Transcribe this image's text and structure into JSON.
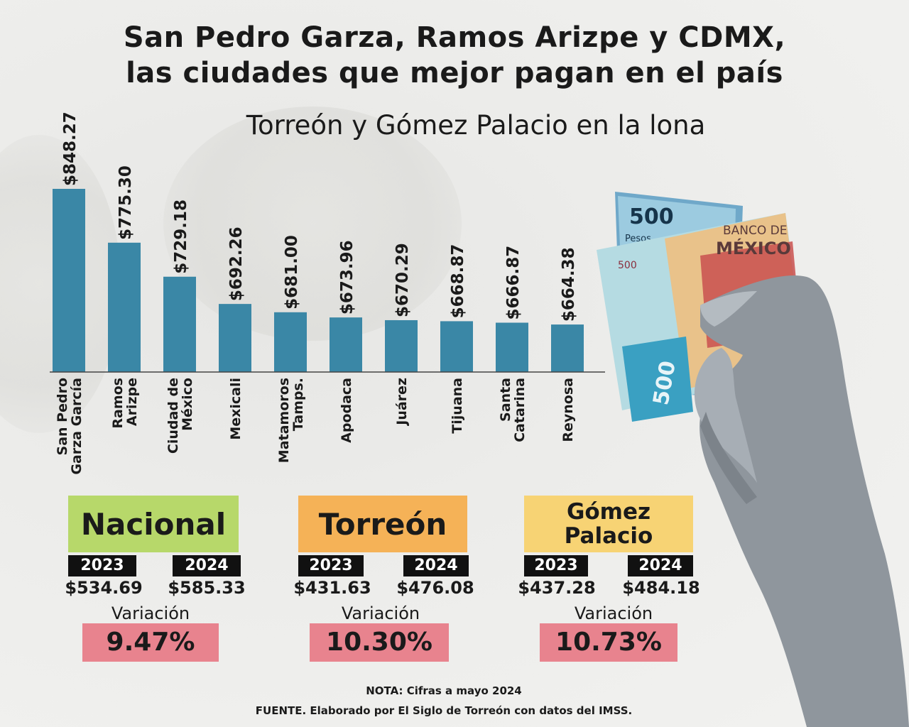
{
  "title_line1": "San Pedro Garza, Ramos Arizpe y CDMX,",
  "title_line2": "las ciudades que mejor pagan en el país",
  "subtitle": "Torreón y Gómez Palacio en la lona",
  "chart_data": {
    "type": "bar",
    "categories": [
      [
        "San Pedro",
        "Garza García"
      ],
      [
        "Ramos",
        "Arizpe"
      ],
      [
        "Ciudad de",
        "México"
      ],
      [
        "Mexicali"
      ],
      [
        "Matamoros",
        "Tamps."
      ],
      [
        "Apodaca"
      ],
      [
        "Juárez"
      ],
      [
        "Tijuana"
      ],
      [
        "Santa",
        "Catarina"
      ],
      [
        "Reynosa"
      ]
    ],
    "values": [
      848.27,
      775.3,
      729.18,
      692.26,
      681.0,
      673.96,
      670.29,
      668.87,
      666.87,
      664.38
    ],
    "value_labels": [
      "$848.27",
      "$775.30",
      "$729.18",
      "$692.26",
      "$681.00",
      "$673.96",
      "$670.29",
      "$668.87",
      "$666.87",
      "$664.38"
    ],
    "bar_color": "#3a87a6",
    "grid": false,
    "legend": "none"
  },
  "panels": [
    {
      "name": "Nacional",
      "color": "#b7d86a",
      "year_a": "2023",
      "year_b": "2024",
      "value_a": "$534.69",
      "value_b": "$585.33",
      "variation_label": "Variación",
      "variation": "9.47%"
    },
    {
      "name": "Torreón",
      "color": "#f5b257",
      "year_a": "2023",
      "year_b": "2024",
      "value_a": "$431.63",
      "value_b": "$476.08",
      "variation_label": "Variación",
      "variation": "10.30%"
    },
    {
      "name_line1": "Gómez",
      "name_line2": "Palacio",
      "color": "#f7d374",
      "year_a": "2023",
      "year_b": "2024",
      "value_a": "$437.28",
      "value_b": "$484.18",
      "variation_label": "Variación",
      "variation": "10.73%"
    }
  ],
  "variation_color": "#e8838e",
  "note": "NOTA: Cifras a mayo 2024",
  "source": "FUENTE. Elaborado por El Siglo de Torreón con datos del IMSS.",
  "bill_text": {
    "denomination": "500",
    "pesos": "Pesos",
    "bank_line1": "BANCO DE",
    "bank_line2": "MÉXICO"
  }
}
